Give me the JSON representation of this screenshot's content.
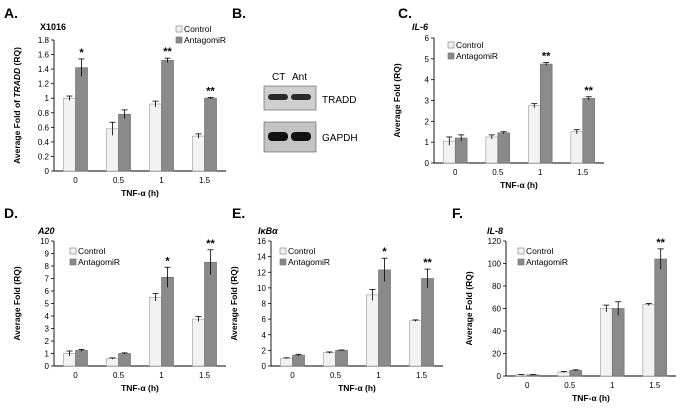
{
  "colors": {
    "control": "#f2f2f2",
    "antagomir": "#8a8a8a",
    "axis": "#000000",
    "errorbar": "#000000"
  },
  "blot": {
    "letter": "B.",
    "lane_labels": [
      "CT",
      "Ant"
    ],
    "band_labels": [
      "TRADD",
      "GAPDH"
    ]
  },
  "chart_data": [
    {
      "id": "A",
      "letter": "A.",
      "type": "bar",
      "title": "X1016",
      "title_italic": false,
      "ylabel": "Average Fold of TRADD (RQ)",
      "ylabel_italic_word": "TRADD",
      "xlabel": "TNF-α (h)",
      "categories": [
        "0",
        "0.5",
        "1",
        "1.5"
      ],
      "ylim": [
        0,
        1.8
      ],
      "yticks": [
        0,
        0.2,
        0.4,
        0.6,
        0.8,
        1,
        1.2,
        1.4,
        1.6,
        1.8
      ],
      "series": [
        {
          "name": "Control",
          "values": [
            1.0,
            0.58,
            0.92,
            0.48
          ],
          "errors": [
            0.03,
            0.09,
            0.04,
            0.03
          ]
        },
        {
          "name": "AntagomiR",
          "values": [
            1.42,
            0.78,
            1.52,
            1.0
          ],
          "errors": [
            0.12,
            0.06,
            0.03,
            0.01
          ]
        }
      ],
      "significance": [
        "*",
        "",
        "**",
        "**"
      ]
    },
    {
      "id": "C",
      "letter": "C.",
      "type": "bar",
      "title": "IL-6",
      "title_italic": true,
      "ylabel": "Average Fold (RQ)",
      "xlabel": "TNF-α (h)",
      "categories": [
        "0",
        "0.5",
        "1",
        "1.5"
      ],
      "ylim": [
        0,
        6
      ],
      "yticks": [
        0,
        1,
        2,
        3,
        4,
        5,
        6
      ],
      "series": [
        {
          "name": "Control",
          "values": [
            1.05,
            1.25,
            2.75,
            1.5
          ],
          "errors": [
            0.2,
            0.1,
            0.1,
            0.1
          ]
        },
        {
          "name": "AntagomiR",
          "values": [
            1.2,
            1.45,
            4.75,
            3.1
          ],
          "errors": [
            0.15,
            0.05,
            0.07,
            0.08
          ]
        }
      ],
      "significance": [
        "",
        "",
        "**",
        "**"
      ]
    },
    {
      "id": "D",
      "letter": "D.",
      "type": "bar",
      "title": "A20",
      "title_italic": true,
      "ylabel": "Average Fold (RQ)",
      "xlabel": "TNF-α (h)",
      "categories": [
        "0",
        "0.5",
        "1",
        "1.5"
      ],
      "ylim": [
        0,
        10
      ],
      "yticks": [
        0,
        1,
        2,
        3,
        4,
        5,
        6,
        7,
        8,
        9,
        10
      ],
      "series": [
        {
          "name": "Control",
          "values": [
            1.0,
            0.6,
            5.5,
            3.75
          ],
          "errors": [
            0.2,
            0.05,
            0.3,
            0.2
          ]
        },
        {
          "name": "AntagomiR",
          "values": [
            1.25,
            1.0,
            7.1,
            8.3
          ],
          "errors": [
            0.08,
            0.05,
            0.8,
            1.0
          ]
        }
      ],
      "significance": [
        "",
        "",
        "*",
        "**"
      ]
    },
    {
      "id": "E",
      "letter": "E.",
      "type": "bar",
      "title": "IκBα",
      "title_italic": true,
      "ylabel": "Average Fold (RQ)",
      "xlabel": "TNF-α (h)",
      "categories": [
        "0",
        "0.5",
        "1",
        "1.5"
      ],
      "ylim": [
        0,
        16
      ],
      "yticks": [
        0,
        2,
        4,
        6,
        8,
        10,
        12,
        14,
        16
      ],
      "series": [
        {
          "name": "Control",
          "values": [
            1.0,
            1.7,
            9.1,
            5.8
          ],
          "errors": [
            0.05,
            0.1,
            0.7,
            0.1
          ]
        },
        {
          "name": "AntagomiR",
          "values": [
            1.4,
            2.0,
            12.3,
            11.2
          ],
          "errors": [
            0.1,
            0.05,
            1.5,
            1.2
          ]
        }
      ],
      "significance": [
        "",
        "",
        "*",
        "**"
      ]
    },
    {
      "id": "F",
      "letter": "F.",
      "type": "bar",
      "title": "IL-8",
      "title_italic": true,
      "ylabel": "Average Fold (RQ)",
      "xlabel": "TNF-α (h)",
      "categories": [
        "0",
        "0.5",
        "1",
        "1.5"
      ],
      "ylim": [
        0,
        120
      ],
      "yticks": [
        0,
        20,
        40,
        60,
        80,
        100,
        120
      ],
      "series": [
        {
          "name": "Control",
          "values": [
            1.0,
            3.5,
            60.0,
            63.5
          ],
          "errors": [
            0.3,
            0.5,
            3.0,
            1.0
          ]
        },
        {
          "name": "AntagomiR",
          "values": [
            1.0,
            5.0,
            60.0,
            104.0
          ],
          "errors": [
            0.3,
            0.5,
            6.0,
            9.0
          ]
        }
      ],
      "significance": [
        "",
        "",
        "",
        "**"
      ]
    }
  ]
}
